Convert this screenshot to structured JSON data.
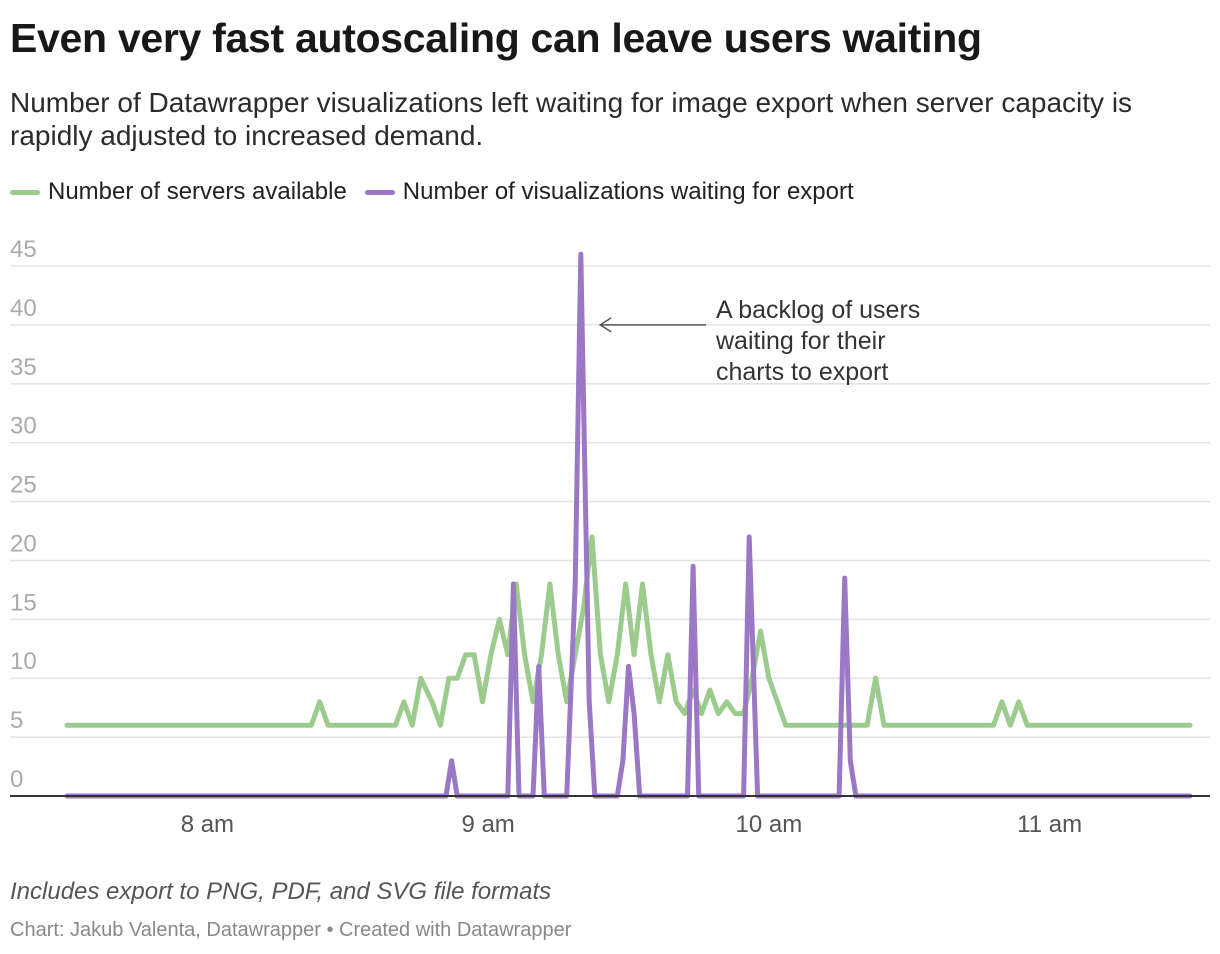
{
  "chart_data": {
    "type": "line",
    "title": "Even very fast autoscaling can leave users waiting",
    "subtitle": "Number of Datawrapper visualizations left waiting for image export when server capacity is rapidly adjusted to increased demand.",
    "xlabel": "",
    "ylabel": "",
    "ylim": [
      0,
      45
    ],
    "yticks": [
      0,
      5,
      10,
      15,
      20,
      25,
      30,
      35,
      40,
      45
    ],
    "xlim": [
      7.5,
      11.5
    ],
    "xticks": [
      {
        "value": 8,
        "label": "8 am"
      },
      {
        "value": 9,
        "label": "9 am"
      },
      {
        "value": 10,
        "label": "10 am"
      },
      {
        "value": 11,
        "label": "11 am"
      }
    ],
    "grid": true,
    "legend": "top-left",
    "series": [
      {
        "name": "Number of servers available",
        "color": "#9bcc8d",
        "x": [
          7.5,
          8.37,
          8.4,
          8.43,
          8.67,
          8.7,
          8.73,
          8.76,
          8.8,
          8.83,
          8.86,
          8.89,
          8.92,
          8.95,
          8.98,
          9.01,
          9.04,
          9.07,
          9.1,
          9.13,
          9.16,
          9.19,
          9.22,
          9.25,
          9.28,
          9.31,
          9.34,
          9.37,
          9.4,
          9.43,
          9.46,
          9.49,
          9.52,
          9.55,
          9.58,
          9.61,
          9.64,
          9.67,
          9.7,
          9.73,
          9.76,
          9.79,
          9.82,
          9.85,
          9.88,
          9.91,
          9.94,
          9.97,
          10.0,
          10.03,
          10.06,
          10.09,
          10.12,
          10.35,
          10.38,
          10.41,
          10.44,
          10.8,
          10.83,
          10.86,
          10.89,
          10.92,
          11.5
        ],
        "values": [
          6,
          6,
          8,
          6,
          6,
          8,
          6,
          10,
          8,
          6,
          10,
          10,
          12,
          12,
          8,
          12,
          15,
          12,
          18,
          12,
          8,
          12,
          18,
          12,
          8,
          12,
          16,
          22,
          12,
          8,
          12,
          18,
          12,
          18,
          12,
          8,
          12,
          8,
          7,
          9,
          7,
          9,
          7,
          8,
          7,
          7,
          10,
          14,
          10,
          8,
          6,
          6,
          6,
          6,
          10,
          6,
          6,
          6,
          8,
          6,
          8,
          6,
          6
        ]
      },
      {
        "name": "Number of visualizations waiting for export",
        "color": "#9b78c6",
        "x": [
          7.5,
          8.85,
          8.87,
          8.89,
          9.07,
          9.09,
          9.11,
          9.16,
          9.18,
          9.2,
          9.28,
          9.31,
          9.33,
          9.36,
          9.38,
          9.46,
          9.48,
          9.5,
          9.52,
          9.54,
          9.71,
          9.73,
          9.75,
          9.88,
          9.91,
          9.93,
          9.96,
          10.25,
          10.27,
          10.29,
          10.31,
          11.5
        ],
        "values": [
          0,
          0,
          3,
          0,
          0,
          18,
          0,
          0,
          11,
          0,
          0,
          18,
          46,
          8,
          0,
          0,
          3,
          11,
          7,
          0,
          0,
          19.5,
          0,
          0,
          0,
          22,
          0,
          0,
          18.5,
          3,
          0,
          0
        ]
      }
    ],
    "annotation": {
      "lines": [
        "A backlog of users",
        "waiting for their",
        "charts to export"
      ],
      "target_x": 9.36,
      "target_y": 40
    },
    "notes": "Includes export to PNG, PDF, and SVG file formats",
    "byline": "Chart: Jakub Valenta, Datawrapper • Created with Datawrapper"
  }
}
